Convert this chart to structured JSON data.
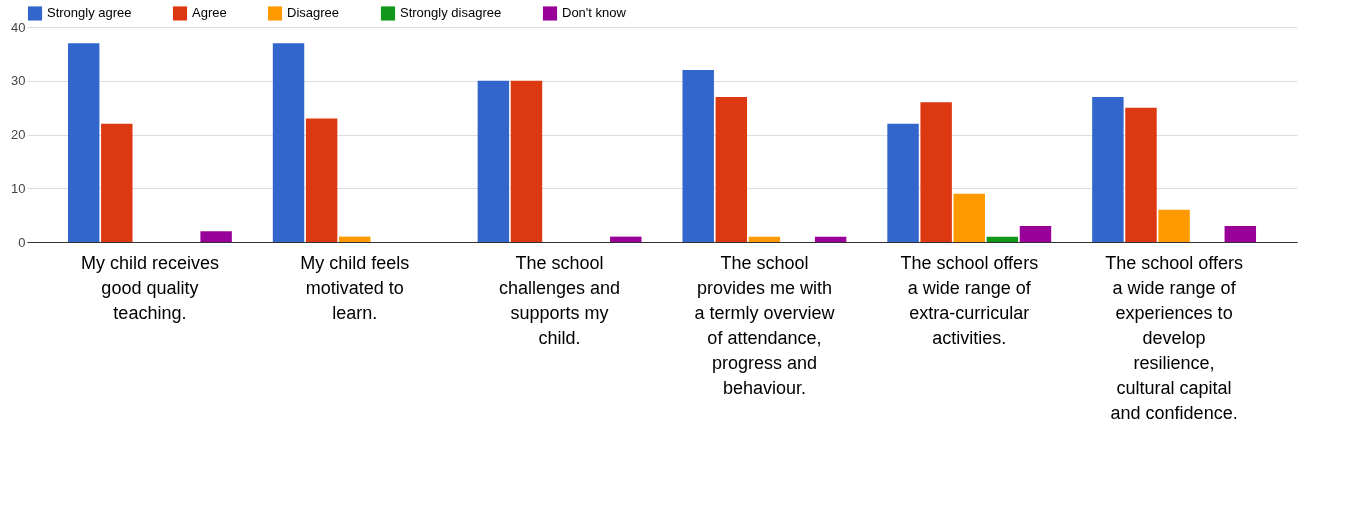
{
  "chart_data": {
    "type": "bar",
    "categories": [
      "My child receives good quality teaching.",
      "My child feels motivated to learn.",
      "The school challenges and supports my child.",
      "The school provides me with a termly overview of attendance, progress and behaviour.",
      "The school offers a wide range of extra-curricular activities.",
      "The school offers a wide range of experiences to develop resilience, cultural capital and confidence."
    ],
    "series": [
      {
        "name": "Strongly agree",
        "color": "#3366cc",
        "values": [
          37,
          37,
          30,
          32,
          22,
          27
        ]
      },
      {
        "name": "Agree",
        "color": "#dc3912",
        "values": [
          22,
          23,
          30,
          27,
          26,
          25
        ]
      },
      {
        "name": "Disagree",
        "color": "#ff9900",
        "values": [
          0,
          1,
          0,
          1,
          9,
          6
        ]
      },
      {
        "name": "Strongly disagree",
        "color": "#109618",
        "values": [
          0,
          0,
          0,
          0,
          1,
          0
        ]
      },
      {
        "name": "Don't know",
        "color": "#990099",
        "values": [
          2,
          0,
          1,
          1,
          3,
          3
        ]
      }
    ],
    "ylim": [
      0,
      40
    ],
    "yticks": [
      0,
      10,
      20,
      30,
      40
    ],
    "grid": "y",
    "legend": "top left"
  }
}
